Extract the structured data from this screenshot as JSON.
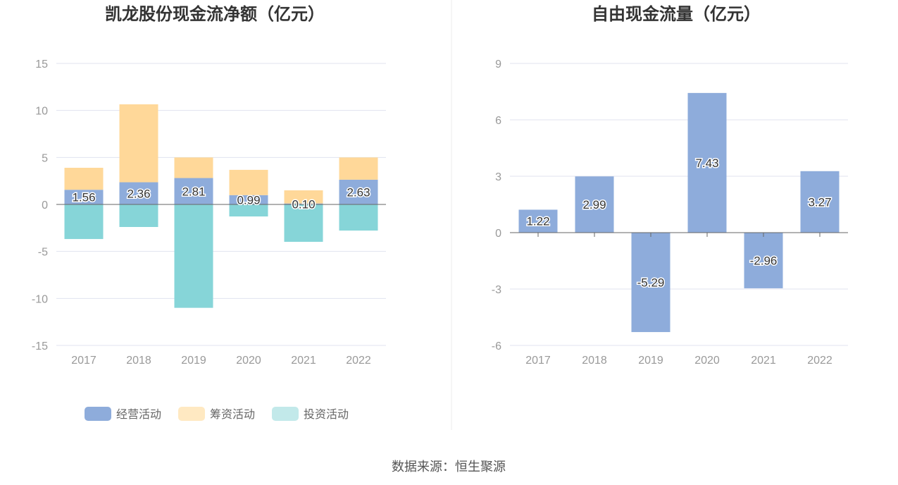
{
  "source": "数据来源：恒生聚源",
  "colors": {
    "operating": "#8eacdb",
    "financing": "#ffd899",
    "investing": "#86d5d8",
    "fcf": "#8eacdb",
    "grid": "#e0e3ef",
    "axis": "#666666"
  },
  "chart_data": [
    {
      "type": "bar",
      "stacked": true,
      "title": "凯龙股份现金流净额（亿元）",
      "categories": [
        "2017",
        "2018",
        "2019",
        "2020",
        "2021",
        "2022"
      ],
      "ylim": [
        -15,
        15
      ],
      "yticks": [
        15,
        10,
        5,
        0,
        -5,
        -10,
        -15
      ],
      "grid": true,
      "legend_position": "bottom",
      "series": [
        {
          "name": "经营活动",
          "values": [
            1.56,
            2.36,
            2.81,
            0.99,
            0.1,
            2.63
          ],
          "labels": [
            "1.56",
            "2.36",
            "2.81",
            "0.99",
            "0.10",
            "2.63"
          ]
        },
        {
          "name": "筹资活动",
          "values": [
            2.34,
            8.29,
            2.19,
            2.69,
            1.4,
            2.37
          ]
        },
        {
          "name": "投资活动",
          "values": [
            -3.68,
            -2.4,
            -11.0,
            -1.28,
            -3.98,
            -2.78
          ]
        }
      ]
    },
    {
      "type": "bar",
      "title": "自由现金流量（亿元）",
      "categories": [
        "2017",
        "2018",
        "2019",
        "2020",
        "2021",
        "2022"
      ],
      "ylim": [
        -6,
        9
      ],
      "yticks": [
        9,
        6,
        3,
        0,
        -3,
        -6
      ],
      "grid": true,
      "values": [
        1.22,
        2.99,
        -5.29,
        7.43,
        -2.96,
        3.27
      ],
      "labels": [
        "1.22",
        "2.99",
        "-5.29",
        "7.43",
        "-2.96",
        "3.27"
      ]
    }
  ]
}
